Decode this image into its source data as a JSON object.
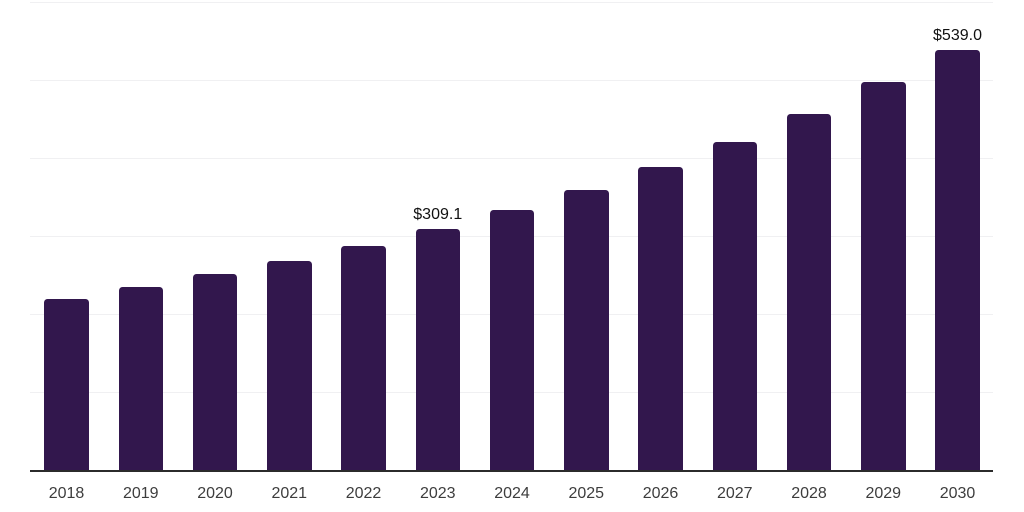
{
  "chart_data": {
    "type": "bar",
    "title": "",
    "xlabel": "",
    "ylabel": "",
    "categories": [
      "2018",
      "2019",
      "2020",
      "2021",
      "2022",
      "2023",
      "2024",
      "2025",
      "2026",
      "2027",
      "2028",
      "2029",
      "2030"
    ],
    "values": [
      219.0,
      234.3,
      251.0,
      268.0,
      287.5,
      309.1,
      333.2,
      359.0,
      388.9,
      420.9,
      456.3,
      497.0,
      539.0
    ],
    "value_prefix": "$",
    "annotations": [
      {
        "category": "2023",
        "text": "$309.1"
      },
      {
        "category": "2030",
        "text": "$539.0"
      }
    ],
    "ylim": [
      0,
      600
    ],
    "gridline_interval": 100,
    "grid": "horizontal",
    "legend": "none",
    "y_axis_labels_visible": false,
    "colors": {
      "bar": "#32174D",
      "axis_line": "#2b2b2b",
      "gridline": "#f0f0f2",
      "tick_label": "#3d3d3d",
      "annotation_text": "#111111",
      "background": "#ffffff"
    }
  }
}
